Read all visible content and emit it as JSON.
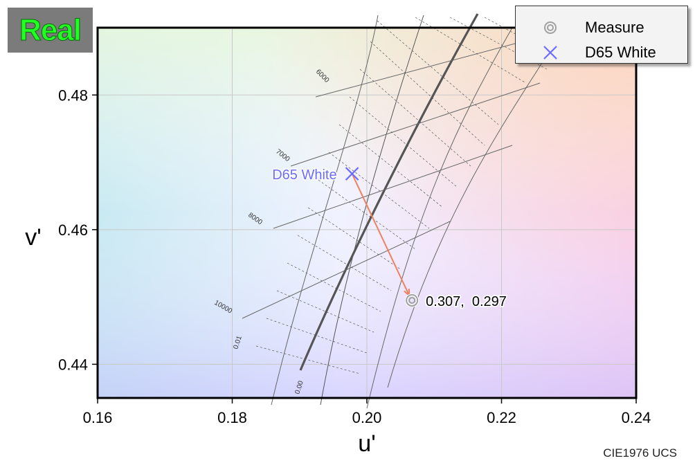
{
  "badge": {
    "text": "Real"
  },
  "legend": {
    "items": [
      {
        "label": "Measure",
        "marker": "ring",
        "color": "#a0a0a0"
      },
      {
        "label": "D65 White",
        "marker": "x",
        "color": "#6b6bff"
      }
    ]
  },
  "footer": "CIE1976 UCS",
  "chart_data": {
    "type": "scatter",
    "title": "",
    "xlabel": "u'",
    "ylabel": "v'",
    "xlim": [
      0.16,
      0.24
    ],
    "ylim": [
      0.435,
      0.49
    ],
    "x_ticks": [
      "0.16",
      "0.18",
      "0.20",
      "0.22",
      "0.24"
    ],
    "y_ticks": [
      "0.44",
      "0.46",
      "0.48"
    ],
    "grid": true,
    "legend_position": "top-right",
    "series": [
      {
        "name": "Measure",
        "points": [
          {
            "x": 0.2067,
            "y": 0.4495
          }
        ],
        "label": "0.307,  0.297",
        "color": "#a0a0a0"
      },
      {
        "name": "D65 White",
        "points": [
          {
            "x": 0.1978,
            "y": 0.4683
          }
        ],
        "label": "D65 White",
        "color": "#6b6bff"
      }
    ],
    "arrow": {
      "from": [
        0.1978,
        0.4683
      ],
      "to": [
        0.2063,
        0.4502
      ],
      "color": "#f08060"
    },
    "cct_labels": [
      "6000",
      "7000",
      "8000",
      "10000"
    ],
    "duv_labels": [
      "0.01",
      "0.00"
    ]
  }
}
